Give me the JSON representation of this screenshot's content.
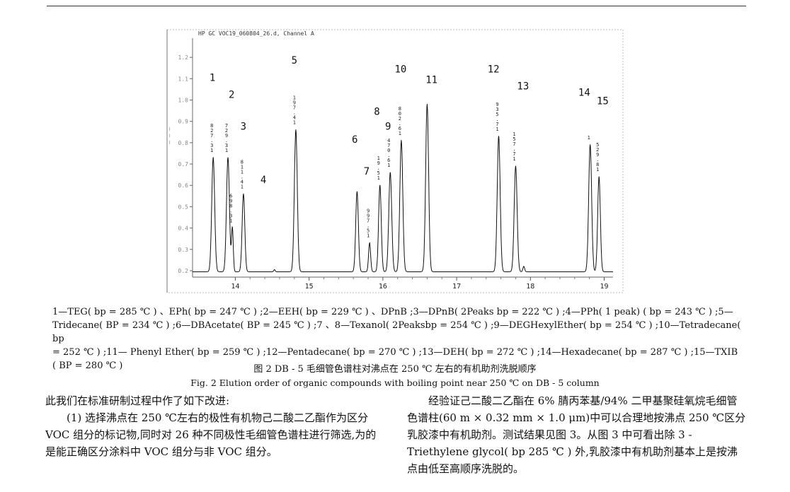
{
  "chart_data": {
    "type": "line",
    "title": "HP GC VOC19_060804_26.d, Channel A",
    "xlim": [
      13.42,
      19.12
    ],
    "ylim": [
      0.17,
      1.27
    ],
    "x_ticks": [
      "14",
      "15",
      "16",
      "17",
      "18",
      "19"
    ],
    "y_ticks": [
      "1.2",
      "1.1",
      "1.0",
      "0.9",
      "0.8",
      "0.7",
      "0.6",
      "0.5",
      "0.4",
      "0.3",
      "0.2"
    ],
    "baseline": 0.195,
    "peaks": [
      {
        "x": 13.7,
        "y": 0.73,
        "w": 0.02,
        "tag": "8\n2\n7\n.\n3\n1",
        "num": "1"
      },
      {
        "x": 13.9,
        "y": 0.73,
        "w": 0.02,
        "tag": "7\n2\n9\n.\n3\n1",
        "num": "2"
      },
      {
        "x": 13.96,
        "y": 0.4,
        "w": 0.012,
        "tag": "6\n9\n8\n.\n3\n1",
        "num": ""
      },
      {
        "x": 14.11,
        "y": 0.56,
        "w": 0.018,
        "tag": "8\n1\n1\n.\n4\n1",
        "num": "3"
      },
      {
        "x": 14.53,
        "y": 0.205,
        "w": 0.01,
        "tag": "",
        "num": ""
      },
      {
        "x": 14.82,
        "y": 0.86,
        "w": 0.02,
        "tag": "1\n9\n7\n.\n4\n1",
        "num": "5"
      },
      {
        "x": 15.65,
        "y": 0.57,
        "w": 0.018,
        "tag": "",
        "num": ""
      },
      {
        "x": 15.82,
        "y": 0.33,
        "w": 0.014,
        "tag": "9\n9\n7\n.\n5\n1",
        "num": ""
      },
      {
        "x": 15.96,
        "y": 0.6,
        "w": 0.018,
        "tag": "1\n9\n.\n5\n1",
        "num": ""
      },
      {
        "x": 16.1,
        "y": 0.66,
        "w": 0.02,
        "tag": "4\n7\n0\n.\n6\n1",
        "num": ""
      },
      {
        "x": 16.25,
        "y": 0.81,
        "w": 0.02,
        "tag": "8\n0\n2\n.\n6\n1",
        "num": ""
      },
      {
        "x": 16.6,
        "y": 0.98,
        "w": 0.02,
        "tag": "",
        "num": ""
      },
      {
        "x": 17.57,
        "y": 0.83,
        "w": 0.02,
        "tag": "9\n3\n5\n.\n7\n1",
        "num": ""
      },
      {
        "x": 17.8,
        "y": 0.69,
        "w": 0.02,
        "tag": "1\n5\n7\n.\n7\n1",
        "num": ""
      },
      {
        "x": 17.91,
        "y": 0.22,
        "w": 0.012,
        "tag": "",
        "num": ""
      },
      {
        "x": 18.81,
        "y": 0.79,
        "w": 0.02,
        "tag": "1",
        "num": ""
      },
      {
        "x": 18.93,
        "y": 0.64,
        "w": 0.018,
        "tag": "5\n2\n9\n.\n8\n1",
        "num": ""
      }
    ],
    "labels": [
      {
        "t": "1",
        "x": 13.69,
        "y": 1.09
      },
      {
        "t": "2",
        "x": 13.95,
        "y": 1.01
      },
      {
        "t": "3",
        "x": 14.11,
        "y": 0.86
      },
      {
        "t": "4",
        "x": 14.38,
        "y": 0.61
      },
      {
        "t": "5",
        "x": 14.8,
        "y": 1.17
      },
      {
        "t": "6",
        "x": 15.62,
        "y": 0.8
      },
      {
        "t": "7",
        "x": 15.78,
        "y": 0.65
      },
      {
        "t": "8",
        "x": 15.92,
        "y": 0.93
      },
      {
        "t": "9",
        "x": 16.07,
        "y": 0.86
      },
      {
        "t": "10",
        "x": 16.24,
        "y": 1.13
      },
      {
        "t": "11",
        "x": 16.66,
        "y": 1.08
      },
      {
        "t": "12",
        "x": 17.5,
        "y": 1.13
      },
      {
        "t": "13",
        "x": 17.9,
        "y": 1.05
      },
      {
        "t": "14",
        "x": 18.73,
        "y": 1.02
      },
      {
        "t": "15",
        "x": 18.98,
        "y": 0.98
      }
    ]
  },
  "caption_line1": "1—TEG( bp = 285 ℃ ) 、EPh( bp = 247 ℃ ) ;2—EEH( bp = 229 ℃ ) 、DPnB ;3—DPnB( 2Peaks bp = 222 ℃ ) ;4—PPh( 1 peak) ( bp = 243 ℃ ) ;5—",
  "caption_line2": "Tridecane( BP = 234 ℃ ) ;6—DBAcetate( BP = 245 ℃ ) ;7 、8—Texanol( 2Peaksbp = 254 ℃ ) ;9—DEGHexylEther( bp = 254 ℃ ) ;10—Tetradecane( bp",
  "caption_line3": "= 252 ℃ ) ;11— Phenyl Ether( bp = 259 ℃ ) ;12—Pentadecane( bp = 270 ℃ ) ;13—DEH( bp = 272 ℃ ) ;14—Hexadecane( bp = 287 ℃ ) ;15—TXIB",
  "caption_line4": "( BP = 280 ℃ )",
  "fig_title_cn": "图 2   DB - 5 毛细管色谱柱对沸点在 250 ℃ 左右的有机助剂洗脱顺序",
  "fig_title_en": "Fig. 2    Elution order of organic compounds with boiling point near 250 ℃ on DB - 5 column",
  "left_col": [
    "此我们在标准研制过程中作了如下改进:",
    "(1) 选择沸点在 250 ℃左右的极性有机物己二酸二乙酯作为区分 VOC 组分的标记物,同时对 26 种不同极性毛细管色谱柱进行筛选,为的是能正确区分涂料中 VOC 组分与非 VOC 组分。"
  ],
  "right_col": [
    "经验证己二酸二乙酯在 6% 腈丙苯基/94% 二甲基聚硅氧烷毛细管色谱柱(60 m × 0.32 mm × 1.0 μm)中可以合理地按沸点 250 ℃区分乳胶漆中有机助剂。测试结果见图 3。从图 3 中可看出除 3 - Triethylene glycol( bp 285 ℃ ) 外,乳胶漆中有机助剂基本上是按沸点由低至高顺序洗脱的。"
  ]
}
